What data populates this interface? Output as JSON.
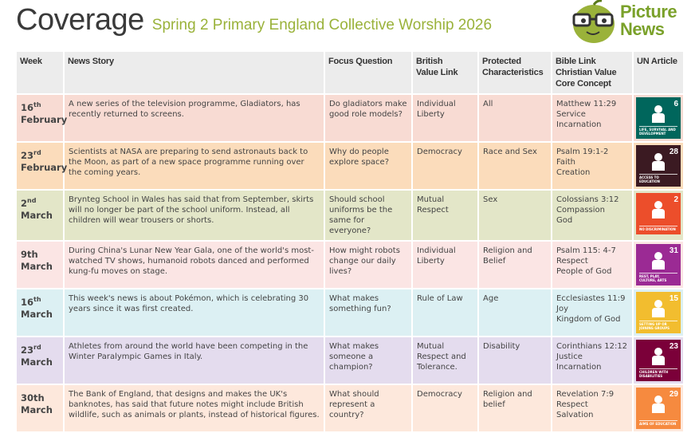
{
  "title": "Coverage",
  "subtitle": "Spring 2 Primary England Collective Worship 2026",
  "logo": {
    "line1": "Picture",
    "line2": "News"
  },
  "headers": {
    "week": "Week",
    "news": "News Story",
    "focus": "Focus Question",
    "british": [
      "British",
      "Value Link"
    ],
    "protected": [
      "Protected",
      "Characteristics"
    ],
    "bible": [
      "Bible Link",
      "Christian Value",
      "Core Concept"
    ],
    "un": "UN Article"
  },
  "rows": [
    {
      "day": "16",
      "suffix": "th",
      "month": "February",
      "news": "A new series of the television programme, Gladiators, has recently returned to screens.",
      "focus": "Do gladiators make good role models?",
      "british": "Individual Liberty",
      "protected": "All",
      "bible": [
        "Matthew 11:29",
        "Service",
        "Incarnation"
      ],
      "un": {
        "number": "6",
        "caption": "LIFE, SURVIVAL AND DEVELOPMENT",
        "color": "#00665c",
        "icon": "heart-child-icon"
      },
      "bg": "#f8dbd3"
    },
    {
      "day": "23",
      "suffix": "rd",
      "month": "February",
      "news": "Scientists at NASA are preparing to send astronauts back to the Moon, as part of a new space programme running over the coming years.",
      "focus": "Why do people explore space?",
      "british": "Democracy",
      "protected": "Race and Sex",
      "bible": [
        "Psalm 19:1-2",
        "Faith",
        "Creation"
      ],
      "un": {
        "number": "28",
        "caption": "ACCESS TO EDUCATION",
        "color": "#3b1a22",
        "icon": "child-books-icon"
      },
      "bg": "#fbdcbb"
    },
    {
      "day": "2",
      "suffix": "nd",
      "month": "March",
      "news": "Brynteg School in Wales has said that from September, skirts will no longer be part of the school uniform. Instead, all children will wear trousers or shorts.",
      "focus": "Should school uniforms be the same for everyone?",
      "british": "Mutual Respect",
      "protected": "Sex",
      "bible": [
        "Colossians 3:12",
        "Compassion",
        "God"
      ],
      "un": {
        "number": "2",
        "caption": "NO DISCRIMINATION",
        "color": "#ec4e2b",
        "icon": "two-children-icon"
      },
      "bg": "#e3e6c8"
    },
    {
      "day": "9th",
      "suffix": "",
      "month": "March",
      "news": "During China's Lunar New Year Gala, one of the world's most-watched TV shows, humanoid robots danced and performed kung-fu moves on stage.",
      "focus": "How might robots change our daily lives?",
      "british": "Individual Liberty",
      "protected": "Religion and Belief",
      "bible": [
        "Psalm 115: 4-7",
        "Respect",
        "People of God"
      ],
      "un": {
        "number": "31",
        "caption": "REST, PLAY, CULTURE, ARTS",
        "color": "#9b2a94",
        "icon": "play-music-icon"
      },
      "bg": "#fbe5e4"
    },
    {
      "day": "16",
      "suffix": "th",
      "month": "March",
      "news": "This week's news is about Pokémon, which is celebrating 30 years since it was first created.",
      "focus": "What makes something fun?",
      "british": "Rule of Law",
      "protected": "Age",
      "bible": [
        "Ecclesiastes 11:9",
        "Joy",
        "Kingdom of God"
      ],
      "un": {
        "number": "15",
        "caption": "SETTING UP OR JOINING GROUPS",
        "color": "#f2bd2f",
        "icon": "group-sign-icon"
      },
      "bg": "#dcf0f3"
    },
    {
      "day": "23",
      "suffix": "rd",
      "month": "March",
      "news": "Athletes from around the world have been competing in the Winter Paralympic Games in Italy.",
      "focus": "What makes someone a champion?",
      "british": "Mutual Respect and Tolerance.",
      "protected": "Disability",
      "bible": [
        "Corinthians 12:12",
        "Justice",
        "Incarnation"
      ],
      "un": {
        "number": "23",
        "caption": "CHILDREN WITH DISABILITIES",
        "color": "#7b0039",
        "icon": "wheelchair-icon"
      },
      "bg": "#e4dcee"
    },
    {
      "day": "30th",
      "suffix": "",
      "month": "March",
      "news": "The Bank of England, that designs and makes the UK's banknotes, has said that future notes might include British wildlife, such as animals or plants, instead of historical figures.",
      "focus": "What should represent a country?",
      "british": "Democracy",
      "protected": "Religion and belief",
      "bible": [
        "Revelation 7:9",
        "Respect",
        "Salvation"
      ],
      "un": {
        "number": "29",
        "caption": "AIMS OF EDUCATION",
        "color": "#f68a3f",
        "icon": "thinking-child-icon"
      },
      "bg": "#fde8dc"
    }
  ]
}
